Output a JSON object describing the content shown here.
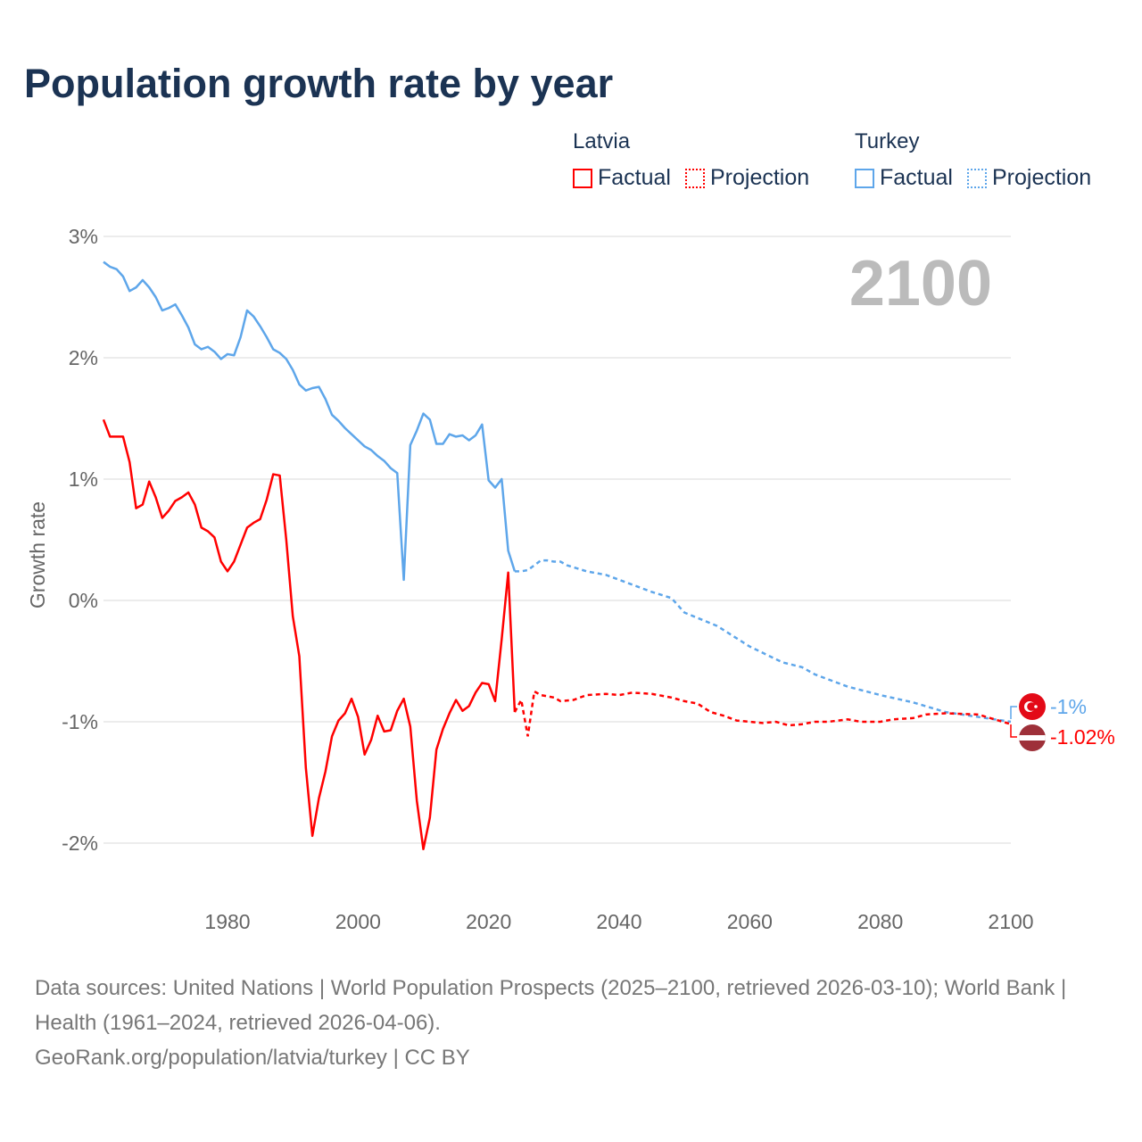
{
  "title": "Population growth rate by year",
  "legend": [
    {
      "country": "Latvia",
      "factual_label": "Factual",
      "projection_label": "Projection",
      "color": "#ff0000"
    },
    {
      "country": "Turkey",
      "factual_label": "Factual",
      "projection_label": "Projection",
      "color": "#5ea6ea"
    }
  ],
  "year_display": "2100",
  "end_labels": {
    "turkey": "-1%",
    "latvia": "-1.02%"
  },
  "footer": {
    "sources": "Data sources: United Nations | World Population Prospects (2025–2100, retrieved 2026-03-10); World Bank | Health (1961–2024, retrieved 2026-04-06).",
    "credit": "GeoRank.org/population/latvia/turkey | CC BY"
  },
  "chart_data": {
    "type": "line",
    "title": "Population growth rate by year",
    "xlabel": "",
    "ylabel": "Growth rate",
    "xlim": [
      1961,
      2100
    ],
    "ylim": [
      -2.5,
      3
    ],
    "x_ticks": [
      1980,
      2000,
      2020,
      2040,
      2060,
      2080,
      2100
    ],
    "y_ticks": [
      3,
      2,
      1,
      0,
      -1,
      -2
    ],
    "y_tick_labels": [
      "3%",
      "2%",
      "1%",
      "0%",
      "-1%",
      "-2%"
    ],
    "grid": true,
    "legend_position": "top-right",
    "series": [
      {
        "name": "Turkey",
        "color": "#5ea6ea",
        "factual_start": 1961,
        "factual": [
          2.79,
          2.75,
          2.73,
          2.67,
          2.55,
          2.58,
          2.64,
          2.58,
          2.5,
          2.39,
          2.41,
          2.44,
          2.35,
          2.25,
          2.11,
          2.07,
          2.09,
          2.05,
          1.99,
          2.03,
          2.02,
          2.17,
          2.39,
          2.34,
          2.26,
          2.17,
          2.07,
          2.04,
          1.99,
          1.9,
          1.78,
          1.73,
          1.75,
          1.76,
          1.66,
          1.53,
          1.48,
          1.42,
          1.37,
          1.32,
          1.27,
          1.24,
          1.19,
          1.15,
          1.09,
          1.05,
          0.17,
          1.28,
          1.4,
          1.54,
          1.49,
          1.29,
          1.29,
          1.37,
          1.35,
          1.36,
          1.32,
          1.36,
          1.45,
          0.99,
          0.93,
          1.0,
          0.41,
          0.24
        ],
        "projection": [
          [
            2024,
            0.24
          ],
          [
            2025,
            0.24
          ],
          [
            2026,
            0.25
          ],
          [
            2027,
            0.29
          ],
          [
            2028,
            0.33
          ],
          [
            2029,
            0.33
          ],
          [
            2030,
            0.32
          ],
          [
            2031,
            0.32
          ],
          [
            2032,
            0.29
          ],
          [
            2035,
            0.24
          ],
          [
            2038,
            0.21
          ],
          [
            2040,
            0.17
          ],
          [
            2045,
            0.07
          ],
          [
            2048,
            0.02
          ],
          [
            2050,
            -0.1
          ],
          [
            2055,
            -0.21
          ],
          [
            2060,
            -0.38
          ],
          [
            2065,
            -0.51
          ],
          [
            2068,
            -0.55
          ],
          [
            2070,
            -0.61
          ],
          [
            2075,
            -0.71
          ],
          [
            2080,
            -0.78
          ],
          [
            2085,
            -0.84
          ],
          [
            2090,
            -0.92
          ],
          [
            2095,
            -0.96
          ],
          [
            2100,
            -1.0
          ]
        ]
      },
      {
        "name": "Latvia",
        "color": "#ff0000",
        "factual_start": 1961,
        "factual": [
          1.49,
          1.35,
          1.35,
          1.35,
          1.14,
          0.76,
          0.79,
          0.98,
          0.85,
          0.68,
          0.74,
          0.82,
          0.85,
          0.89,
          0.79,
          0.6,
          0.57,
          0.52,
          0.32,
          0.24,
          0.32,
          0.46,
          0.6,
          0.64,
          0.67,
          0.83,
          1.04,
          1.03,
          0.5,
          -0.13,
          -0.46,
          -1.38,
          -1.94,
          -1.63,
          -1.41,
          -1.12,
          -0.99,
          -0.93,
          -0.81,
          -0.96,
          -1.27,
          -1.15,
          -0.95,
          -1.08,
          -1.07,
          -0.91,
          -0.81,
          -1.04,
          -1.65,
          -2.05,
          -1.79,
          -1.23,
          -1.06,
          -0.93,
          -0.82,
          -0.91,
          -0.87,
          -0.76,
          -0.68,
          -0.69,
          -0.83,
          -0.32,
          0.23,
          -0.92
        ],
        "projection": [
          [
            2024,
            -0.92
          ],
          [
            2025,
            -0.82
          ],
          [
            2026,
            -1.12
          ],
          [
            2027,
            -0.75
          ],
          [
            2028,
            -0.78
          ],
          [
            2030,
            -0.8
          ],
          [
            2031,
            -0.83
          ],
          [
            2033,
            -0.82
          ],
          [
            2035,
            -0.78
          ],
          [
            2038,
            -0.77
          ],
          [
            2040,
            -0.78
          ],
          [
            2042,
            -0.76
          ],
          [
            2045,
            -0.77
          ],
          [
            2048,
            -0.8
          ],
          [
            2050,
            -0.83
          ],
          [
            2052,
            -0.85
          ],
          [
            2054,
            -0.92
          ],
          [
            2056,
            -0.95
          ],
          [
            2058,
            -0.99
          ],
          [
            2062,
            -1.01
          ],
          [
            2064,
            -1.0
          ],
          [
            2066,
            -1.03
          ],
          [
            2068,
            -1.02
          ],
          [
            2070,
            -1.0
          ],
          [
            2072,
            -1.0
          ],
          [
            2075,
            -0.98
          ],
          [
            2077,
            -1.0
          ],
          [
            2080,
            -1.0
          ],
          [
            2082,
            -0.98
          ],
          [
            2085,
            -0.97
          ],
          [
            2087,
            -0.94
          ],
          [
            2090,
            -0.93
          ],
          [
            2095,
            -0.94
          ],
          [
            2100,
            -1.02
          ]
        ]
      }
    ]
  }
}
